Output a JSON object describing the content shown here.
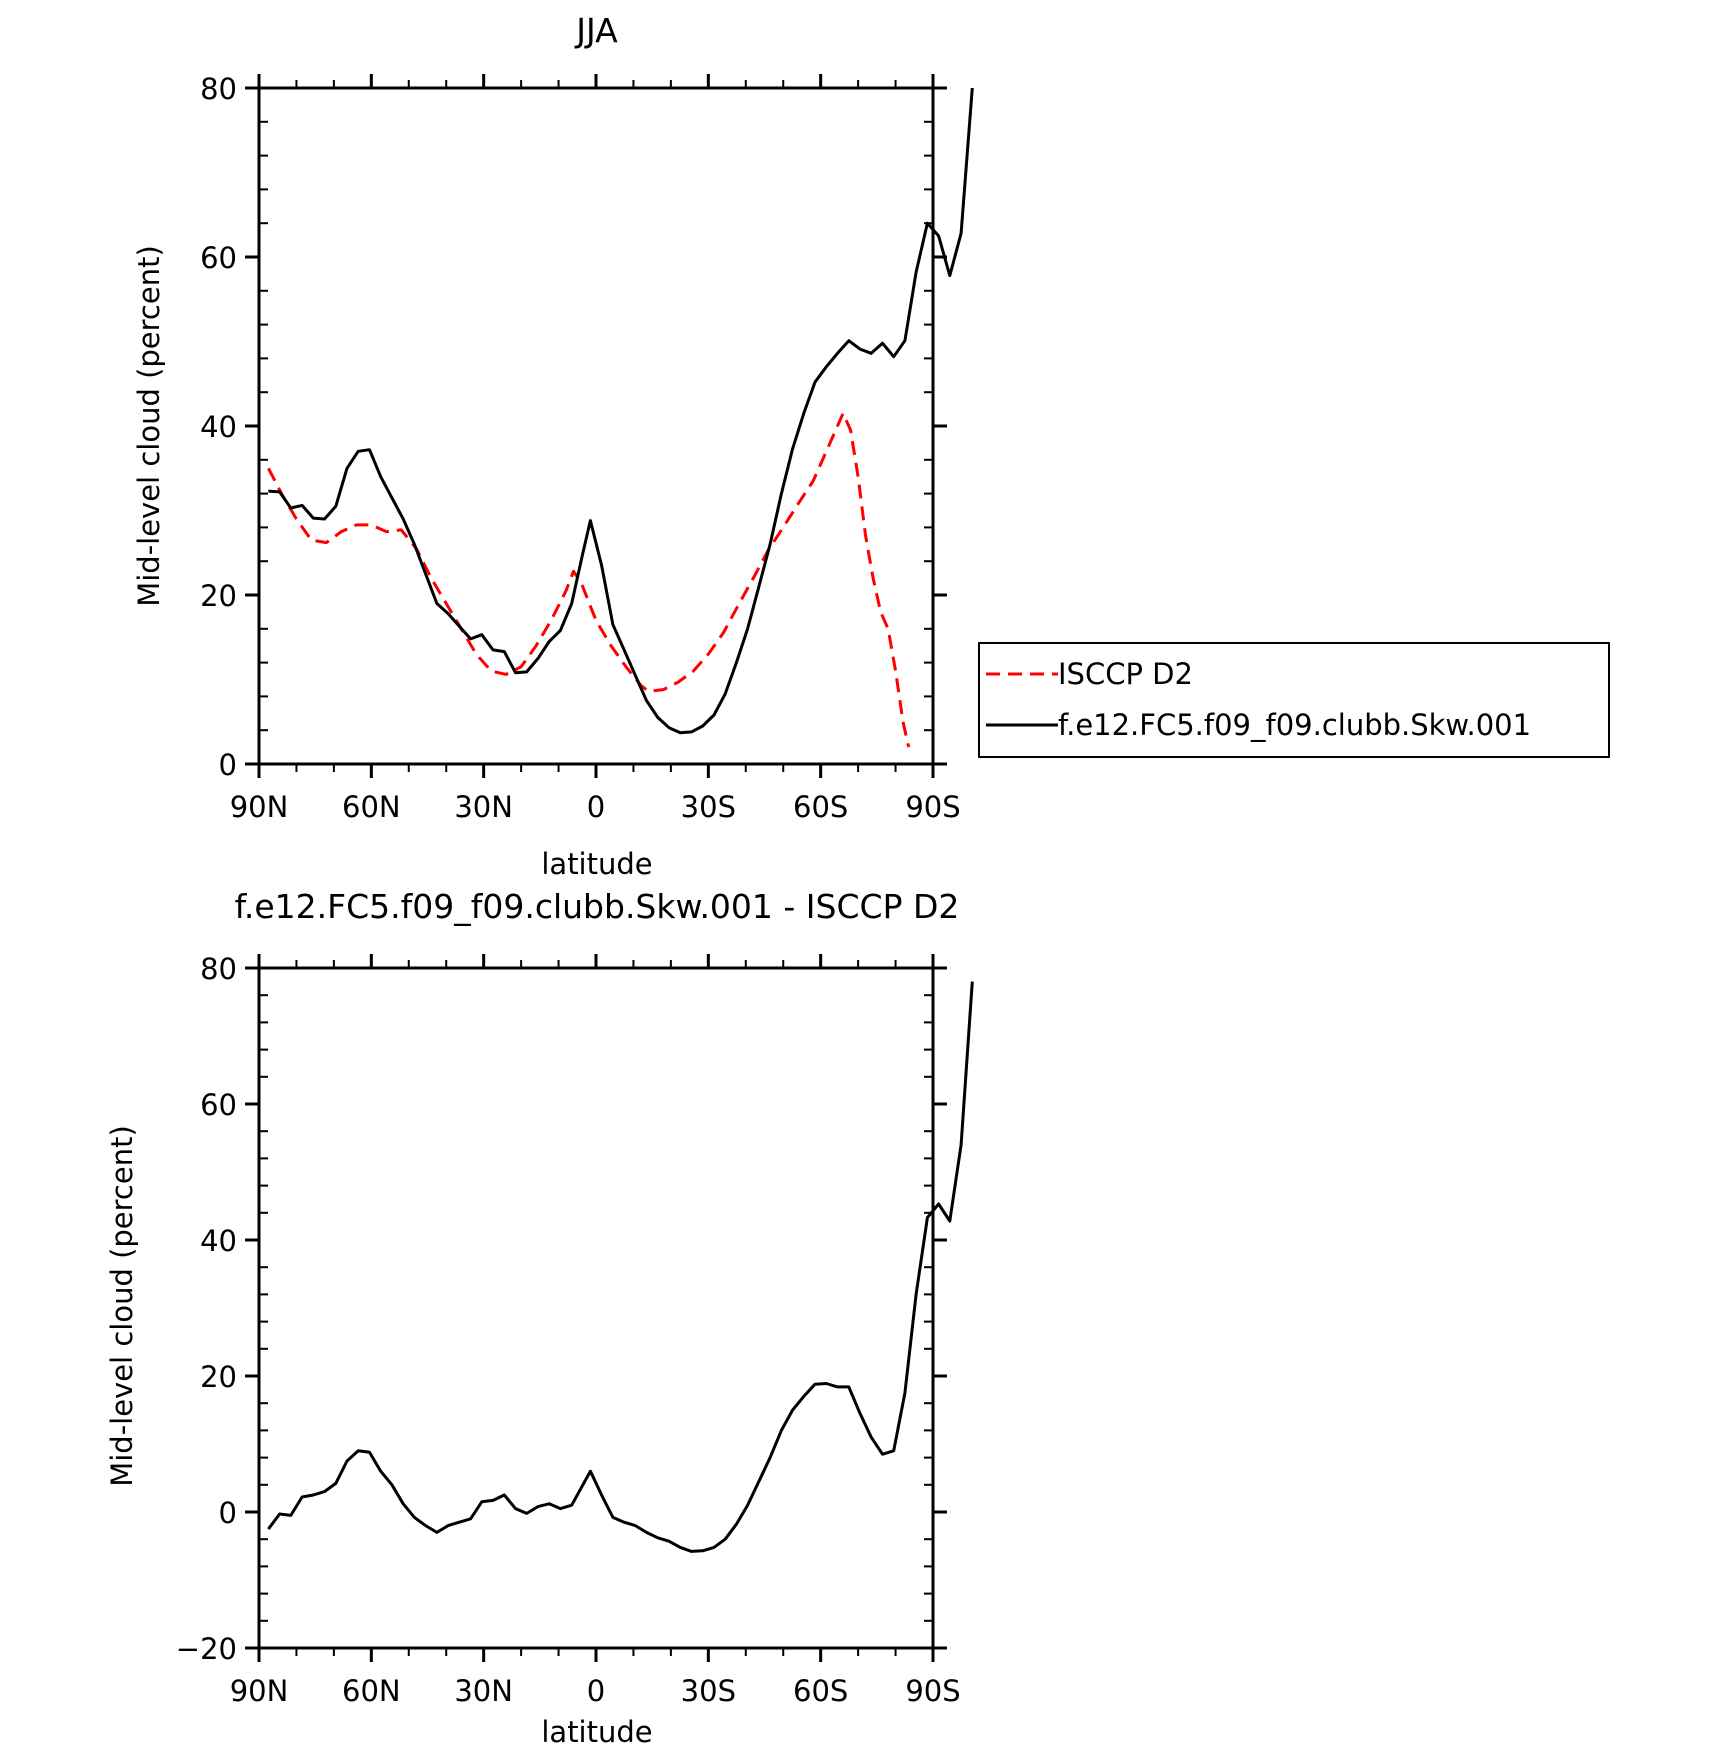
{
  "chart_data": [
    {
      "type": "line",
      "title": "JJA",
      "xlabel": "latitude",
      "ylabel": "Mid-level cloud (percent)",
      "xlim": [
        90,
        -90
      ],
      "ylim": [
        0,
        80
      ],
      "x_tick_values": [
        90,
        60,
        30,
        0,
        -30,
        -60,
        -90
      ],
      "x_tick_labels": [
        "90N",
        "60N",
        "30N",
        "0",
        "30S",
        "60S",
        "90S"
      ],
      "y_tick_values": [
        0,
        20,
        40,
        60,
        80
      ],
      "y_tick_labels": [
        "0",
        "20",
        "40",
        "60",
        "80"
      ],
      "grid": false,
      "legend_position": "right",
      "legend": [
        "ISCCP D2",
        "f.e12.FC5.f09_f09.clubb.Skw.001"
      ],
      "series": [
        {
          "name": "ISCCP D2",
          "color": "#ff0000",
          "style": "dashed",
          "points": [
            [
              87.5,
              35
            ],
            [
              84,
              32
            ],
            [
              80,
              29
            ],
            [
              76,
              26.5
            ],
            [
              72,
              26.2
            ],
            [
              68,
              27.5
            ],
            [
              64,
              28.3
            ],
            [
              60,
              28.3
            ],
            [
              56,
              27.5
            ],
            [
              52,
              27.7
            ],
            [
              48,
              25.5
            ],
            [
              44,
              22
            ],
            [
              40,
              19
            ],
            [
              36,
              16
            ],
            [
              32,
              13
            ],
            [
              28,
              11
            ],
            [
              24,
              10.6
            ],
            [
              20,
              11.5
            ],
            [
              16,
              14
            ],
            [
              12,
              17
            ],
            [
              8,
              20.5
            ],
            [
              6,
              22.8
            ],
            [
              4,
              21.5
            ],
            [
              0,
              17
            ],
            [
              -4,
              14
            ],
            [
              -8,
              11.5
            ],
            [
              -12,
              9.3
            ],
            [
              -14,
              8.6
            ],
            [
              -18,
              8.8
            ],
            [
              -22,
              9.7
            ],
            [
              -26,
              11
            ],
            [
              -30,
              13
            ],
            [
              -34,
              15.5
            ],
            [
              -38,
              18.8
            ],
            [
              -42,
              22
            ],
            [
              -46,
              25.3
            ],
            [
              -50,
              28
            ],
            [
              -54,
              30.8
            ],
            [
              -58,
              33.5
            ],
            [
              -62,
              37.5
            ],
            [
              -66,
              41.5
            ],
            [
              -68,
              39.5
            ],
            [
              -70,
              34
            ],
            [
              -72,
              27
            ],
            [
              -74,
              22
            ],
            [
              -76,
              18
            ],
            [
              -78,
              16
            ],
            [
              -80,
              11
            ],
            [
              -82,
              5
            ],
            [
              -83.5,
              2
            ]
          ]
        },
        {
          "name": "f.e12.FC5.f09_f09.clubb.Skw.001",
          "color": "#000000",
          "style": "solid",
          "points": [
            [
              87.5,
              32.3
            ],
            [
              84.5,
              32.2
            ],
            [
              81.5,
              30.3
            ],
            [
              78.5,
              30.6
            ],
            [
              75.5,
              29.1
            ],
            [
              72.5,
              29
            ],
            [
              69.5,
              30.5
            ],
            [
              66.5,
              35
            ],
            [
              63.5,
              37
            ],
            [
              60.5,
              37.2
            ],
            [
              57.5,
              34
            ],
            [
              54.5,
              31.5
            ],
            [
              51.5,
              29
            ],
            [
              48.5,
              26
            ],
            [
              45.5,
              22.5
            ],
            [
              42.5,
              19
            ],
            [
              39.5,
              17.8
            ],
            [
              36.5,
              16.3
            ],
            [
              33.5,
              14.8
            ],
            [
              30.5,
              15.3
            ],
            [
              27.5,
              13.5
            ],
            [
              24.5,
              13.3
            ],
            [
              21.5,
              10.8
            ],
            [
              18.5,
              10.9
            ],
            [
              15.5,
              12.5
            ],
            [
              12.5,
              14.5
            ],
            [
              9.5,
              15.8
            ],
            [
              6.5,
              19
            ],
            [
              3.5,
              25
            ],
            [
              1.5,
              28.8
            ],
            [
              -1.5,
              23.5
            ],
            [
              -4.5,
              16.5
            ],
            [
              -7.5,
              13.5
            ],
            [
              -10.5,
              10.5
            ],
            [
              -13.5,
              7.5
            ],
            [
              -16.5,
              5.5
            ],
            [
              -19.5,
              4.3
            ],
            [
              -22.5,
              3.7
            ],
            [
              -25.5,
              3.8
            ],
            [
              -28.5,
              4.5
            ],
            [
              -31.5,
              5.8
            ],
            [
              -34.5,
              8.3
            ],
            [
              -37.5,
              12
            ],
            [
              -40.5,
              16
            ],
            [
              -43.5,
              21
            ],
            [
              -46.5,
              26
            ],
            [
              -49.5,
              32
            ],
            [
              -52.5,
              37.3
            ],
            [
              -55.5,
              41.5
            ],
            [
              -58.5,
              45.2
            ],
            [
              -61.5,
              47
            ],
            [
              -64.5,
              48.6
            ],
            [
              -67.5,
              50.1
            ],
            [
              -70.5,
              49.1
            ],
            [
              -73.5,
              48.6
            ],
            [
              -76.5,
              49.8
            ],
            [
              -79.5,
              48.2
            ],
            [
              -82.5,
              50.1
            ],
            [
              -85.5,
              58.2
            ],
            [
              -88.5,
              64
            ],
            [
              -91.5,
              62.5
            ],
            [
              -94.5,
              57.8
            ],
            [
              -97.5,
              62.8
            ],
            [
              -100.5,
              80
            ]
          ]
        }
      ]
    },
    {
      "type": "line",
      "title": "f.e12.FC5.f09_f09.clubb.Skw.001 - ISCCP D2",
      "xlabel": "latitude",
      "ylabel": "Mid-level cloud (percent)",
      "xlim": [
        90,
        -90
      ],
      "ylim": [
        -20,
        80
      ],
      "x_tick_values": [
        90,
        60,
        30,
        0,
        -30,
        -60,
        -90
      ],
      "x_tick_labels": [
        "90N",
        "60N",
        "30N",
        "0",
        "30S",
        "60S",
        "90S"
      ],
      "y_tick_values": [
        -20,
        0,
        20,
        40,
        60,
        80
      ],
      "y_tick_labels": [
        "-20",
        "0",
        "20",
        "40",
        "60",
        "80"
      ],
      "grid": false,
      "series": [
        {
          "color": "#000000",
          "style": "solid",
          "points": [
            [
              87.5,
              -2.5
            ],
            [
              84.5,
              -0.3
            ],
            [
              81.5,
              -0.5
            ],
            [
              78.5,
              2.2
            ],
            [
              75.5,
              2.5
            ],
            [
              72.5,
              3
            ],
            [
              69.5,
              4.2
            ],
            [
              66.5,
              7.5
            ],
            [
              63.5,
              9
            ],
            [
              60.5,
              8.8
            ],
            [
              57.5,
              6
            ],
            [
              54.5,
              4
            ],
            [
              51.5,
              1.2
            ],
            [
              48.5,
              -0.8
            ],
            [
              45.5,
              -2
            ],
            [
              42.5,
              -3
            ],
            [
              39.5,
              -2
            ],
            [
              36.5,
              -1.5
            ],
            [
              33.5,
              -1
            ],
            [
              30.5,
              1.5
            ],
            [
              27.5,
              1.7
            ],
            [
              24.5,
              2.5
            ],
            [
              21.5,
              0.5
            ],
            [
              18.5,
              -0.2
            ],
            [
              15.5,
              0.8
            ],
            [
              12.5,
              1.2
            ],
            [
              9.5,
              0.5
            ],
            [
              6.5,
              1
            ],
            [
              3.5,
              4
            ],
            [
              1.5,
              6
            ],
            [
              -1.5,
              2.5
            ],
            [
              -4.5,
              -0.8
            ],
            [
              -7.5,
              -1.5
            ],
            [
              -10.5,
              -2
            ],
            [
              -13.5,
              -3
            ],
            [
              -16.5,
              -3.8
            ],
            [
              -19.5,
              -4.3
            ],
            [
              -22.5,
              -5.2
            ],
            [
              -25.5,
              -5.8
            ],
            [
              -28.5,
              -5.7
            ],
            [
              -31.5,
              -5.2
            ],
            [
              -34.5,
              -4
            ],
            [
              -37.5,
              -1.8
            ],
            [
              -40.5,
              1
            ],
            [
              -43.5,
              4.5
            ],
            [
              -46.5,
              8
            ],
            [
              -49.5,
              12
            ],
            [
              -52.5,
              15
            ],
            [
              -55.5,
              17
            ],
            [
              -58.5,
              18.8
            ],
            [
              -61.5,
              18.9
            ],
            [
              -64.5,
              18.4
            ],
            [
              -67.5,
              18.4
            ],
            [
              -70.5,
              14.5
            ],
            [
              -73.5,
              11
            ],
            [
              -76.5,
              8.5
            ],
            [
              -79.5,
              9
            ],
            [
              -82.5,
              17.5
            ],
            [
              -85.5,
              32
            ],
            [
              -88.5,
              43.3
            ],
            [
              -91.5,
              45.3
            ],
            [
              -94.5,
              42.8
            ],
            [
              -97.5,
              54
            ],
            [
              -100.5,
              78
            ]
          ]
        }
      ]
    }
  ]
}
